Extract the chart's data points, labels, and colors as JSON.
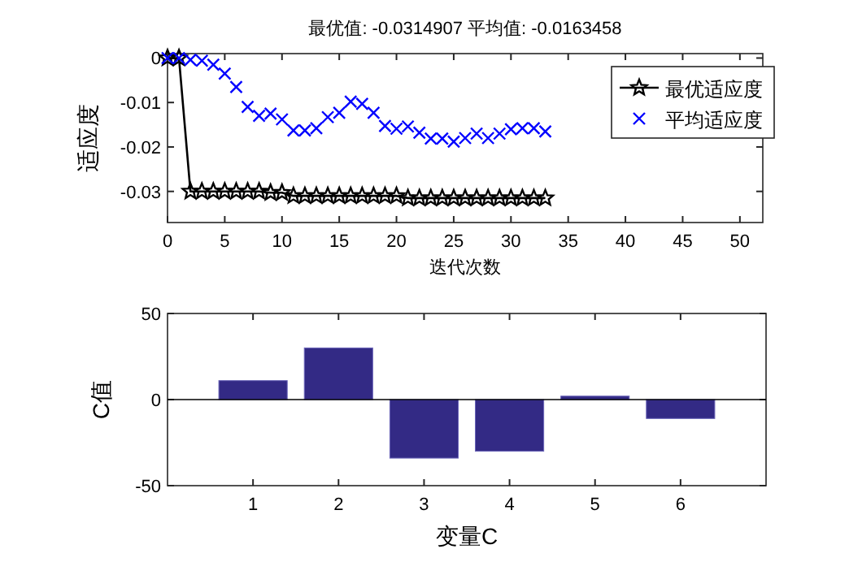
{
  "chart_data": [
    {
      "type": "line",
      "title": "最优值: -0.0314907 平均值: -0.0163458",
      "xlabel": "迭代次数",
      "ylabel": "适应度",
      "xlim": [
        0,
        52
      ],
      "xticks": [
        0,
        5,
        10,
        15,
        20,
        25,
        30,
        35,
        40,
        45,
        50
      ],
      "ylim": [
        -0.037,
        0.001
      ],
      "yticks": [
        0,
        -0.01,
        -0.02,
        -0.03
      ],
      "legend": "top right",
      "grid": false,
      "series": [
        {
          "name": "最优适应度",
          "type": "line",
          "color": "#000000",
          "marker": "star",
          "line_style": "solid",
          "x": [
            0,
            1,
            2,
            3,
            4,
            5,
            6,
            7,
            8,
            9,
            10,
            11,
            12,
            13,
            14,
            15,
            16,
            17,
            18,
            19,
            20,
            21,
            22,
            23,
            24,
            25,
            26,
            27,
            28,
            29,
            30,
            31,
            32,
            33
          ],
          "values": [
            0,
            0,
            -0.03,
            -0.03,
            -0.03,
            -0.03,
            -0.03,
            -0.03,
            -0.03,
            -0.0303,
            -0.0303,
            -0.031,
            -0.031,
            -0.031,
            -0.031,
            -0.031,
            -0.031,
            -0.031,
            -0.031,
            -0.031,
            -0.031,
            -0.0315,
            -0.0315,
            -0.0315,
            -0.0315,
            -0.0315,
            -0.0315,
            -0.0315,
            -0.0315,
            -0.0315,
            -0.0315,
            -0.0315,
            -0.0315,
            -0.0315
          ]
        },
        {
          "name": "平均适应度",
          "type": "scatter",
          "color": "#0000ff",
          "marker": "cross",
          "x": [
            0,
            1,
            2,
            3,
            4,
            5,
            6,
            7,
            8,
            9,
            10,
            11,
            12,
            13,
            14,
            15,
            16,
            17,
            18,
            19,
            20,
            21,
            22,
            23,
            24,
            25,
            26,
            27,
            28,
            29,
            30,
            31,
            32,
            33
          ],
          "values": [
            0,
            0,
            -0.0004,
            -0.0006,
            -0.0015,
            -0.0035,
            -0.0065,
            -0.011,
            -0.013,
            -0.0125,
            -0.0138,
            -0.0163,
            -0.0163,
            -0.0158,
            -0.0133,
            -0.0123,
            -0.0098,
            -0.0103,
            -0.0123,
            -0.0153,
            -0.0159,
            -0.0154,
            -0.0168,
            -0.0181,
            -0.0181,
            -0.0188,
            -0.018,
            -0.017,
            -0.018,
            -0.017,
            -0.016,
            -0.0158,
            -0.0158,
            -0.0165
          ]
        }
      ]
    },
    {
      "type": "bar",
      "xlabel": "变量C",
      "ylabel": "C值",
      "categories": [
        "1",
        "2",
        "3",
        "4",
        "5",
        "6"
      ],
      "values": [
        11,
        30,
        -34,
        -30,
        2,
        -11
      ],
      "color": "#332a85",
      "ylim": [
        -50,
        50
      ],
      "yticks": [
        -50,
        0,
        50
      ],
      "grid": false,
      "ref_lines": [
        {
          "axis": "y",
          "value": 0,
          "color": "#000000"
        }
      ]
    }
  ]
}
